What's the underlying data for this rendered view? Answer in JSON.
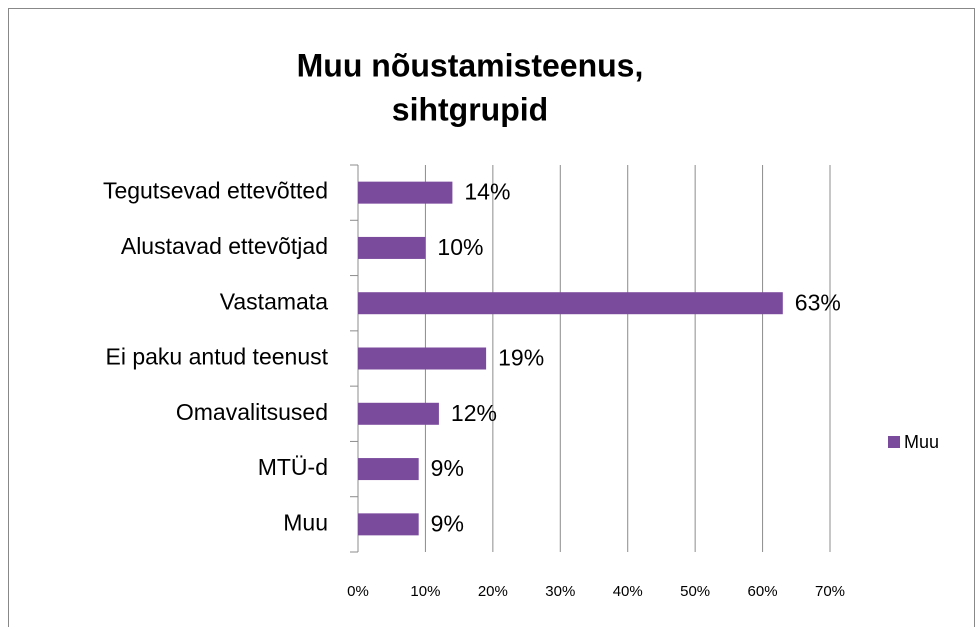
{
  "chart_data": {
    "type": "bar",
    "orientation": "horizontal",
    "title": [
      "Muu nõustamisteenus,",
      "sihtgrupid"
    ],
    "categories": [
      "Tegutsevad ettevõtted",
      "Alustavad ettevõtjad",
      "Vastamata",
      "Ei paku antud teenust",
      "Omavalitsused",
      "MTÜ-d",
      "Muu"
    ],
    "series": [
      {
        "name": "Muu",
        "color": "#7a4a9c",
        "values": [
          14,
          10,
          63,
          19,
          12,
          9,
          9
        ],
        "value_labels": [
          "14%",
          "10%",
          "63%",
          "19%",
          "12%",
          "9%",
          "9%"
        ]
      }
    ],
    "xlim": [
      0,
      70
    ],
    "xticks": [
      {
        "value": 0,
        "label": "0%"
      },
      {
        "value": 10,
        "label": "10%"
      },
      {
        "value": 20,
        "label": "20%"
      },
      {
        "value": 30,
        "label": "30%"
      },
      {
        "value": 40,
        "label": "40%"
      },
      {
        "value": 50,
        "label": "50%"
      },
      {
        "value": 60,
        "label": "60%"
      },
      {
        "value": 70,
        "label": "70%"
      }
    ],
    "grid": true,
    "legend": "right"
  }
}
